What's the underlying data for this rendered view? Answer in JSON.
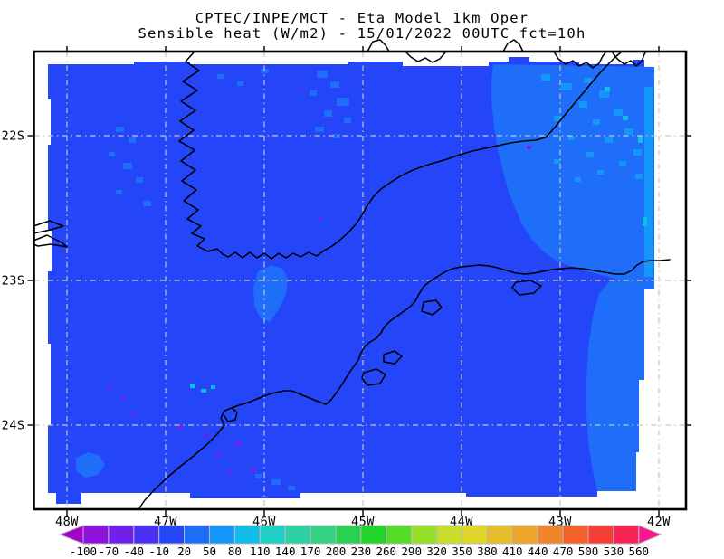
{
  "title": {
    "line1": "CPTEC/INPE/MCT -  Eta Model 1km Oper",
    "line2": "Sensible heat (W/m2) - 15/01/2022 00UTC fct=10h"
  },
  "map": {
    "lat_labels": [
      "22S",
      "23S",
      "24S"
    ],
    "lon_labels": [
      "48W",
      "47W",
      "46W",
      "45W",
      "44W",
      "43W",
      "42W"
    ]
  },
  "colorbar": {
    "tick_labels": [
      "-100",
      "-70",
      "-40",
      "-10",
      "20",
      "50",
      "80",
      "110",
      "140",
      "170",
      "200",
      "230",
      "260",
      "290",
      "320",
      "350",
      "380",
      "410",
      "440",
      "470",
      "500",
      "530",
      "560"
    ],
    "colors": [
      "#a004c8",
      "#8c12dc",
      "#7020ea",
      "#4a30f4",
      "#2446f8",
      "#1e6efa",
      "#1496fb",
      "#10bce8",
      "#1ecfc4",
      "#2cd2a4",
      "#34d282",
      "#2ad054",
      "#22d42a",
      "#55dc26",
      "#97e02a",
      "#c6de2a",
      "#dfd62a",
      "#e6be2a",
      "#eca42a",
      "#f0852a",
      "#f4602a",
      "#f63e34",
      "#f82458",
      "#fa1690"
    ]
  },
  "field_colors": {
    "base": "#2446f8",
    "light": "#1e6efa",
    "lighter": "#1496fb",
    "cyan": "#10bce8",
    "purple": "#7020ea"
  },
  "chart_data": {
    "type": "heatmap",
    "title": "CPTEC/INPE/MCT - Eta Model 1km Oper / Sensible heat (W/m2) - 15/01/2022 00UTC fct=10h",
    "xlabel_ticks": [
      "48W",
      "47W",
      "46W",
      "45W",
      "44W",
      "43W",
      "42W"
    ],
    "ylabel_ticks": [
      "22S",
      "23S",
      "24S"
    ],
    "legend_values": [
      -100,
      -70,
      -40,
      -10,
      20,
      50,
      80,
      110,
      140,
      170,
      200,
      230,
      260,
      290,
      320,
      350,
      380,
      410,
      440,
      470,
      500,
      530,
      560
    ],
    "legend_units": "W/m2",
    "field_summary": "Shaded sensible heat field over SE Brazil; dominant values -10 to 20 W/m2 (blue), patches 20-80 W/m2 (lighter blue/cyan) over NE sector and coastal ocean, isolated -70 to -10 W/m2 (purple) spots in SW sector",
    "legend_position": "bottom",
    "grid": true
  }
}
